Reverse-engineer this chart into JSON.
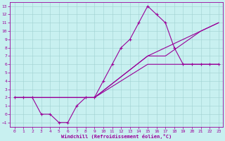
{
  "xlabel": "Windchill (Refroidissement éolien,°C)",
  "bg_color": "#c8f0f0",
  "line_color": "#990099",
  "grid_color": "#a0d0d0",
  "xlim": [
    -0.5,
    23.5
  ],
  "ylim": [
    -1.5,
    13.5
  ],
  "xticks": [
    0,
    1,
    2,
    3,
    4,
    5,
    6,
    7,
    8,
    9,
    10,
    11,
    12,
    13,
    14,
    15,
    16,
    17,
    18,
    19,
    20,
    21,
    22,
    23
  ],
  "yticks": [
    -1,
    0,
    1,
    2,
    3,
    4,
    5,
    6,
    7,
    8,
    9,
    10,
    11,
    12,
    13
  ],
  "line1_x": [
    0,
    1,
    2,
    3,
    4,
    5,
    6,
    7,
    8,
    9,
    10,
    11,
    12,
    13,
    14,
    15,
    16,
    17,
    18,
    19,
    20,
    21,
    22,
    23
  ],
  "line1_y": [
    2,
    2,
    2,
    0,
    0,
    -1,
    -1,
    1,
    2,
    2,
    4,
    6,
    8,
    9,
    11,
    13,
    12,
    11,
    8,
    6,
    6,
    6,
    6,
    6
  ],
  "line2_x": [
    0,
    2,
    9,
    15,
    17,
    21,
    23
  ],
  "line2_y": [
    2,
    2,
    2,
    7,
    8,
    10,
    11
  ],
  "line3_x": [
    0,
    2,
    9,
    15,
    17,
    21,
    23
  ],
  "line3_y": [
    2,
    2,
    2,
    6,
    6,
    6,
    6
  ],
  "line4_x": [
    0,
    2,
    9,
    15,
    17,
    21,
    23
  ],
  "line4_y": [
    2,
    2,
    2,
    7,
    7,
    10,
    11
  ]
}
